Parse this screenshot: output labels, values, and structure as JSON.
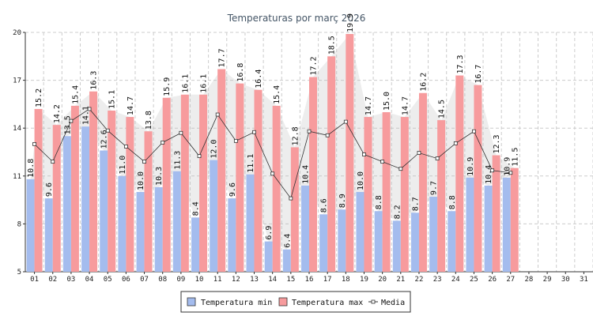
{
  "chart_data": {
    "type": "bar",
    "title": "Temperaturas por març 2026",
    "categories": [
      "01",
      "02",
      "03",
      "04",
      "05",
      "06",
      "07",
      "08",
      "09",
      "10",
      "11",
      "12",
      "13",
      "14",
      "15",
      "16",
      "17",
      "18",
      "19",
      "20",
      "21",
      "22",
      "23",
      "24",
      "25",
      "26",
      "27",
      "28",
      "29",
      "30",
      "31"
    ],
    "ylim": [
      5,
      20
    ],
    "yticks": [
      5,
      8,
      11,
      14,
      17,
      20
    ],
    "grid": true,
    "series": [
      {
        "name": "Temperatura min",
        "color": "#a4bcee",
        "values": [
          10.8,
          9.6,
          13.5,
          14.1,
          12.6,
          11.0,
          10.0,
          10.3,
          11.3,
          8.4,
          12.0,
          9.6,
          11.1,
          6.9,
          6.4,
          10.4,
          8.6,
          8.9,
          10.0,
          8.8,
          8.2,
          8.7,
          9.7,
          8.8,
          10.9,
          10.4,
          10.9,
          null,
          null,
          null,
          null
        ]
      },
      {
        "name": "Temperatura max",
        "color": "#f79b9d",
        "values": [
          15.2,
          14.2,
          15.4,
          16.3,
          15.1,
          14.7,
          13.8,
          15.9,
          16.1,
          16.1,
          17.7,
          16.8,
          16.4,
          15.4,
          12.8,
          17.2,
          18.5,
          19.9,
          14.7,
          15.0,
          14.7,
          16.2,
          14.5,
          17.3,
          16.7,
          12.3,
          11.5,
          null,
          null,
          null,
          null
        ]
      },
      {
        "name": "Media",
        "color": "#333333",
        "values": [
          13.0,
          11.9,
          14.45,
          15.2,
          13.85,
          12.85,
          11.9,
          13.1,
          13.7,
          12.25,
          14.85,
          13.2,
          13.75,
          11.15,
          9.6,
          13.8,
          13.55,
          14.4,
          12.35,
          11.9,
          11.45,
          12.45,
          12.1,
          13.05,
          13.8,
          11.35,
          11.2,
          null,
          null,
          null,
          null
        ]
      }
    ]
  }
}
